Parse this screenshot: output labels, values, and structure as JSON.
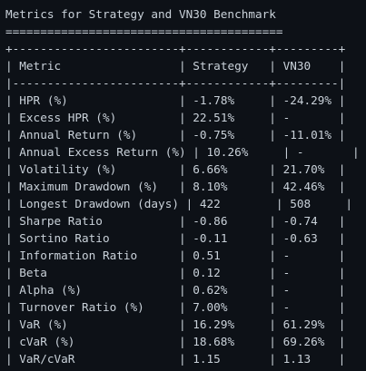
{
  "output": {
    "title": "Metrics for Strategy and VN30 Benchmark",
    "title_underline": "========================================",
    "table": {
      "border_top": "+------------------------+------------+---------+",
      "header_sep": "|------------------------+------------+---------|",
      "border_bottom": "+------------------------+------------+---------+",
      "columns": [
        "Metric",
        "Strategy",
        "VN30"
      ],
      "rows": [
        [
          "HPR (%)",
          "-1.78%",
          "-24.29%"
        ],
        [
          "Excess HPR (%)",
          "22.51%",
          "-"
        ],
        [
          "Annual Return (%)",
          "-0.75%",
          "-11.01%"
        ],
        [
          "Annual Excess Return (%)",
          "10.26%",
          "-"
        ],
        [
          "Volatility (%)",
          "6.66%",
          "21.70%"
        ],
        [
          "Maximum Drawdown (%)",
          "8.10%",
          "42.46%"
        ],
        [
          "Longest Drawdown (days)",
          "422",
          "508"
        ],
        [
          "Sharpe Ratio",
          "-0.86",
          "-0.74"
        ],
        [
          "Sortino Ratio",
          "-0.11",
          "-0.63"
        ],
        [
          "Information Ratio",
          "0.51",
          "-"
        ],
        [
          "Beta",
          "0.12",
          "-"
        ],
        [
          "Alpha (%)",
          "0.62%",
          "-"
        ],
        [
          "Turnover Ratio (%)",
          "7.00%",
          "-"
        ],
        [
          "VaR (%)",
          "16.29%",
          "61.29%"
        ],
        [
          "cVaR (%)",
          "18.68%",
          "69.26%"
        ],
        [
          "VaR/cVaR",
          "1.15",
          "1.13"
        ]
      ]
    }
  },
  "colors": {
    "background": "#0d1117",
    "text": "#c9d1d9"
  }
}
